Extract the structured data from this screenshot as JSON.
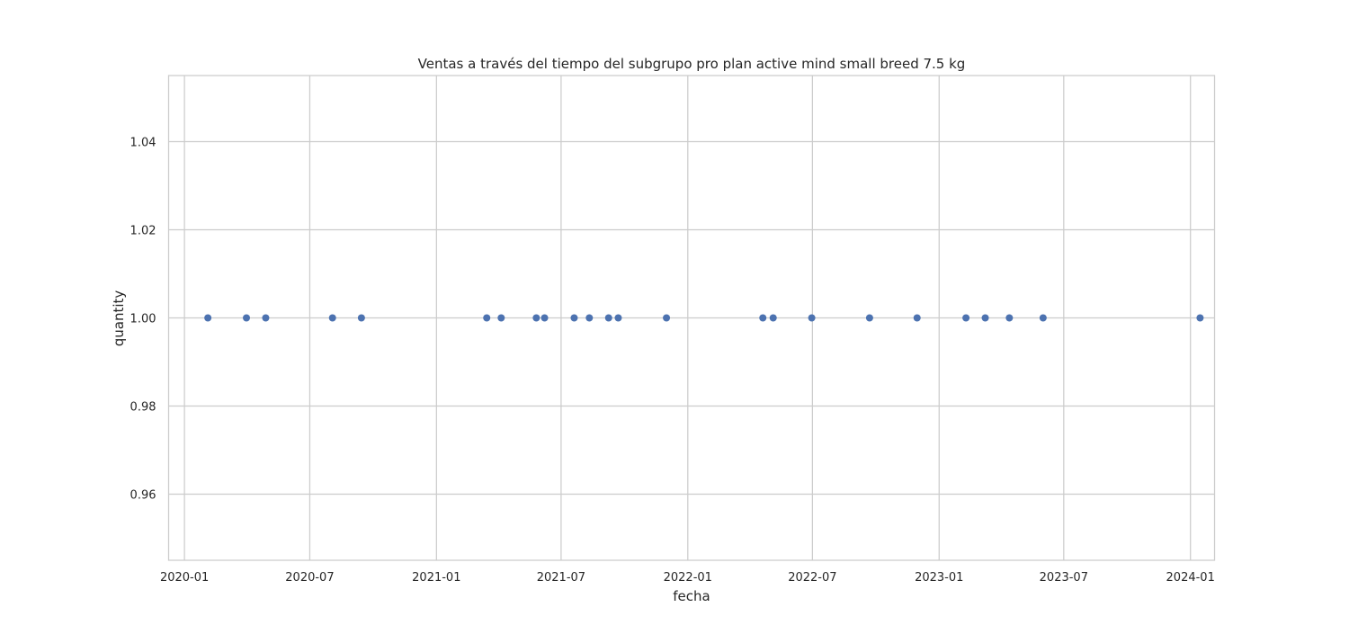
{
  "chart_data": {
    "type": "scatter",
    "title": "Ventas a través del tiempo del subgrupo pro plan active mind small breed 7.5 kg",
    "xlabel": "fecha",
    "ylabel": "quantity",
    "x_scale": "date",
    "xlim": [
      "2019-12-09",
      "2024-02-05"
    ],
    "ylim": [
      0.945,
      1.055
    ],
    "x_ticks": [
      "2020-01",
      "2020-07",
      "2021-01",
      "2021-07",
      "2022-01",
      "2022-07",
      "2023-01",
      "2023-07",
      "2024-01"
    ],
    "y_ticks": [
      "0.96",
      "0.98",
      "1.00",
      "1.02",
      "1.04"
    ],
    "grid": true,
    "legend": null,
    "marker_color": "#4C72B0",
    "points": [
      {
        "x": "2020-02-04",
        "y": 1.0
      },
      {
        "x": "2020-03-31",
        "y": 1.0
      },
      {
        "x": "2020-04-28",
        "y": 1.0
      },
      {
        "x": "2020-08-03",
        "y": 1.0
      },
      {
        "x": "2020-09-14",
        "y": 1.0
      },
      {
        "x": "2021-03-15",
        "y": 1.0
      },
      {
        "x": "2021-04-05",
        "y": 1.0
      },
      {
        "x": "2021-05-26",
        "y": 1.0
      },
      {
        "x": "2021-06-07",
        "y": 1.0
      },
      {
        "x": "2021-07-20",
        "y": 1.0
      },
      {
        "x": "2021-08-11",
        "y": 1.0
      },
      {
        "x": "2021-09-08",
        "y": 1.0
      },
      {
        "x": "2021-09-22",
        "y": 1.0
      },
      {
        "x": "2021-12-01",
        "y": 1.0
      },
      {
        "x": "2022-04-20",
        "y": 1.0
      },
      {
        "x": "2022-05-05",
        "y": 1.0
      },
      {
        "x": "2022-06-30",
        "y": 1.0
      },
      {
        "x": "2022-09-22",
        "y": 1.0
      },
      {
        "x": "2022-11-30",
        "y": 1.0
      },
      {
        "x": "2023-02-09",
        "y": 1.0
      },
      {
        "x": "2023-03-09",
        "y": 1.0
      },
      {
        "x": "2023-04-13",
        "y": 1.0
      },
      {
        "x": "2023-06-01",
        "y": 1.0
      },
      {
        "x": "2024-01-15",
        "y": 1.0
      }
    ]
  }
}
